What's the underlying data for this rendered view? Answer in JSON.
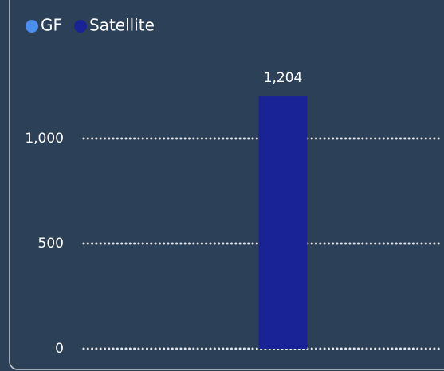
{
  "chart_data": {
    "type": "bar",
    "categories": [
      null
    ],
    "series": [
      {
        "name": "GF",
        "color": "#4a8ef0",
        "values": [
          null
        ]
      },
      {
        "name": "Satellite",
        "color": "#1a2395",
        "values": [
          1204
        ],
        "value_labels": [
          "1,204"
        ]
      }
    ],
    "ylim": [
      0,
      1400
    ],
    "yticks": [
      0,
      500,
      {
        "value": 1000,
        "label": "1,000"
      }
    ],
    "grid": true,
    "legend": "top-left"
  }
}
